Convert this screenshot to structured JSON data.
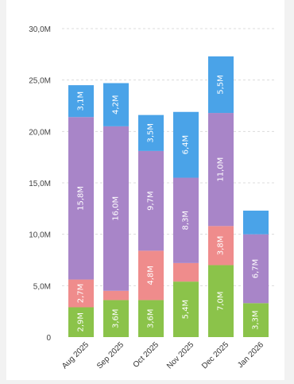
{
  "chart_data": {
    "type": "bar",
    "stacked": true,
    "categories": [
      "Aug 2025",
      "Sep 2025",
      "Oct 2025",
      "Nov 2025",
      "Dec 2025",
      "Jan 2026"
    ],
    "series": [
      {
        "color": "#8bc34a",
        "values": [
          2.9,
          3.6,
          3.6,
          5.4,
          7.0,
          3.3
        ],
        "labels": [
          "2,9M",
          "3,6M",
          "3,6M",
          "5,4M",
          "7,0M",
          "3,3M"
        ]
      },
      {
        "color": "#ef8c8c",
        "values": [
          2.7,
          0.9,
          4.8,
          1.8,
          3.8,
          0.0
        ],
        "labels": [
          "2,7M",
          "",
          "4,8M",
          "",
          "3,8M",
          ""
        ]
      },
      {
        "color": "#a885c8",
        "values": [
          15.8,
          16.0,
          9.7,
          8.3,
          11.0,
          6.7
        ],
        "labels": [
          "15,8M",
          "16,0M",
          "9,7M",
          "8,3M",
          "11,0M",
          "6,7M"
        ]
      },
      {
        "color": "#4aa3e8",
        "values": [
          3.1,
          4.2,
          3.5,
          6.4,
          5.5,
          2.3
        ],
        "labels": [
          "3,1M",
          "4,2M",
          "3,5M",
          "6,4M",
          "5,5M",
          ""
        ]
      }
    ],
    "yticks": [
      0,
      5,
      10,
      15,
      20,
      25,
      30
    ],
    "ytick_labels": [
      "0",
      "5,0M",
      "10,0M",
      "15,0M",
      "20,0M",
      "25,0M",
      "30,0M"
    ],
    "ylim": [
      0,
      30
    ],
    "grid": true,
    "legend": "none"
  }
}
